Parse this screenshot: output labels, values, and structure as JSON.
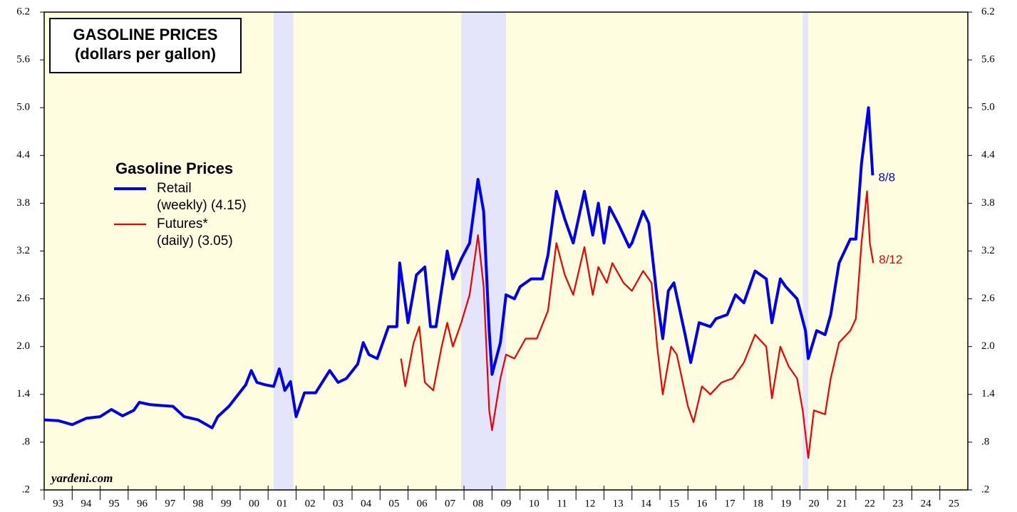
{
  "chart_data": {
    "type": "line",
    "title": [
      "GASOLINE PRICES",
      "(dollars per gallon)"
    ],
    "legend_title": "Gasoline Prices",
    "source": "yardeni.com",
    "xlim": [
      1993,
      2026
    ],
    "xticks": [
      {
        "value": 1993,
        "label": "93"
      },
      {
        "value": 1994,
        "label": "94"
      },
      {
        "value": 1995,
        "label": "95"
      },
      {
        "value": 1996,
        "label": "96"
      },
      {
        "value": 1997,
        "label": "97"
      },
      {
        "value": 1998,
        "label": "98"
      },
      {
        "value": 1999,
        "label": "99"
      },
      {
        "value": 2000,
        "label": "00"
      },
      {
        "value": 2001,
        "label": "01"
      },
      {
        "value": 2002,
        "label": "02"
      },
      {
        "value": 2003,
        "label": "03"
      },
      {
        "value": 2004,
        "label": "04"
      },
      {
        "value": 2005,
        "label": "05"
      },
      {
        "value": 2006,
        "label": "06"
      },
      {
        "value": 2007,
        "label": "07"
      },
      {
        "value": 2008,
        "label": "08"
      },
      {
        "value": 2009,
        "label": "09"
      },
      {
        "value": 2010,
        "label": "10"
      },
      {
        "value": 2011,
        "label": "11"
      },
      {
        "value": 2012,
        "label": "12"
      },
      {
        "value": 2013,
        "label": "13"
      },
      {
        "value": 2014,
        "label": "14"
      },
      {
        "value": 2015,
        "label": "15"
      },
      {
        "value": 2016,
        "label": "16"
      },
      {
        "value": 2017,
        "label": "17"
      },
      {
        "value": 2018,
        "label": "18"
      },
      {
        "value": 2019,
        "label": "19"
      },
      {
        "value": 2020,
        "label": "20"
      },
      {
        "value": 2021,
        "label": "21"
      },
      {
        "value": 2022,
        "label": "22"
      },
      {
        "value": 2023,
        "label": "23"
      },
      {
        "value": 2024,
        "label": "24"
      },
      {
        "value": 2025,
        "label": "25"
      }
    ],
    "ylim": [
      0.2,
      6.2
    ],
    "yticks": [
      {
        "value": 0.2,
        "label": ".2"
      },
      {
        "value": 0.8,
        "label": ".8"
      },
      1.4,
      {
        "value": 2.0,
        "label": "2.0"
      },
      2.6,
      3.2,
      3.8,
      4.4,
      {
        "value": 5.0,
        "label": "5.0"
      },
      5.6,
      6.2
    ],
    "recessions": [
      [
        2001.2,
        2001.9
      ],
      [
        2007.9,
        2009.5
      ],
      [
        2020.1,
        2020.3
      ]
    ],
    "series": [
      {
        "name": "Retail",
        "note": "(weekly) (4.15)",
        "end_label": "8/8",
        "color": "#0000ee",
        "x": [
          1993.0,
          1993.5,
          1994.0,
          1994.5,
          1995.0,
          1995.4,
          1995.8,
          1996.2,
          1996.4,
          1996.8,
          1997.2,
          1997.6,
          1998.0,
          1998.5,
          1999.0,
          1999.2,
          1999.6,
          2000.2,
          2000.4,
          2000.6,
          2000.9,
          2001.2,
          2001.4,
          2001.6,
          2001.8,
          2002.0,
          2002.3,
          2002.7,
          2003.2,
          2003.5,
          2003.8,
          2004.2,
          2004.4,
          2004.6,
          2004.9,
          2005.3,
          2005.6,
          2005.7,
          2005.9,
          2006.0,
          2006.3,
          2006.6,
          2006.8,
          2007.0,
          2007.3,
          2007.4,
          2007.6,
          2007.9,
          2008.2,
          2008.5,
          2008.7,
          2008.9,
          2009.0,
          2009.3,
          2009.5,
          2009.8,
          2010.0,
          2010.4,
          2010.8,
          2011.0,
          2011.3,
          2011.6,
          2011.9,
          2012.3,
          2012.6,
          2012.8,
          2013.0,
          2013.2,
          2013.5,
          2013.9,
          2014.0,
          2014.4,
          2014.6,
          2014.9,
          2015.1,
          2015.3,
          2015.5,
          2015.9,
          2016.1,
          2016.4,
          2016.8,
          2017.0,
          2017.4,
          2017.7,
          2018.0,
          2018.4,
          2018.8,
          2019.0,
          2019.3,
          2019.5,
          2019.9,
          2020.2,
          2020.3,
          2020.6,
          2020.9,
          2021.1,
          2021.4,
          2021.8,
          2022.0,
          2022.2,
          2022.45,
          2022.6
        ],
        "values": [
          1.08,
          1.07,
          1.02,
          1.1,
          1.12,
          1.21,
          1.13,
          1.2,
          1.3,
          1.27,
          1.26,
          1.25,
          1.12,
          1.08,
          0.98,
          1.12,
          1.25,
          1.52,
          1.7,
          1.55,
          1.52,
          1.5,
          1.72,
          1.45,
          1.56,
          1.12,
          1.42,
          1.42,
          1.7,
          1.55,
          1.6,
          1.78,
          2.05,
          1.9,
          1.85,
          2.25,
          2.25,
          3.05,
          2.55,
          2.3,
          2.9,
          3.0,
          2.25,
          2.25,
          2.95,
          3.2,
          2.85,
          3.1,
          3.3,
          4.1,
          3.7,
          2.2,
          1.65,
          2.05,
          2.65,
          2.6,
          2.75,
          2.85,
          2.85,
          3.15,
          3.95,
          3.6,
          3.3,
          3.95,
          3.4,
          3.8,
          3.3,
          3.75,
          3.55,
          3.25,
          3.3,
          3.7,
          3.55,
          2.6,
          2.1,
          2.7,
          2.8,
          2.15,
          1.8,
          2.3,
          2.25,
          2.35,
          2.4,
          2.65,
          2.55,
          2.95,
          2.85,
          2.3,
          2.85,
          2.75,
          2.6,
          2.2,
          1.85,
          2.2,
          2.15,
          2.4,
          3.05,
          3.35,
          3.35,
          4.3,
          5.0,
          4.15
        ]
      },
      {
        "name": "Futures*",
        "note": "(daily) (3.05)",
        "end_label": "8/12",
        "color": "#ee0000",
        "x": [
          2005.75,
          2005.9,
          2006.2,
          2006.4,
          2006.6,
          2006.9,
          2007.2,
          2007.4,
          2007.6,
          2007.9,
          2008.2,
          2008.5,
          2008.7,
          2008.9,
          2009.0,
          2009.3,
          2009.5,
          2009.8,
          2010.2,
          2010.6,
          2011.0,
          2011.3,
          2011.6,
          2011.9,
          2012.3,
          2012.6,
          2012.8,
          2013.1,
          2013.3,
          2013.7,
          2014.0,
          2014.4,
          2014.7,
          2014.9,
          2015.1,
          2015.4,
          2015.6,
          2016.0,
          2016.2,
          2016.5,
          2016.8,
          2017.2,
          2017.6,
          2018.0,
          2018.4,
          2018.8,
          2019.0,
          2019.3,
          2019.6,
          2019.9,
          2020.1,
          2020.3,
          2020.5,
          2020.9,
          2021.1,
          2021.4,
          2021.8,
          2022.0,
          2022.2,
          2022.4,
          2022.5,
          2022.62
        ],
        "values": [
          1.85,
          1.5,
          2.05,
          2.25,
          1.55,
          1.45,
          2.0,
          2.3,
          2.0,
          2.3,
          2.65,
          3.4,
          2.75,
          1.2,
          0.95,
          1.6,
          1.9,
          1.85,
          2.1,
          2.1,
          2.45,
          3.3,
          2.9,
          2.65,
          3.25,
          2.65,
          3.0,
          2.8,
          3.05,
          2.8,
          2.7,
          2.95,
          2.8,
          2.0,
          1.4,
          2.0,
          1.9,
          1.25,
          1.05,
          1.5,
          1.4,
          1.55,
          1.6,
          1.8,
          2.15,
          2.0,
          1.35,
          2.0,
          1.75,
          1.6,
          1.2,
          0.6,
          1.2,
          1.15,
          1.6,
          2.05,
          2.2,
          2.35,
          3.3,
          3.95,
          3.3,
          3.05
        ]
      }
    ]
  }
}
